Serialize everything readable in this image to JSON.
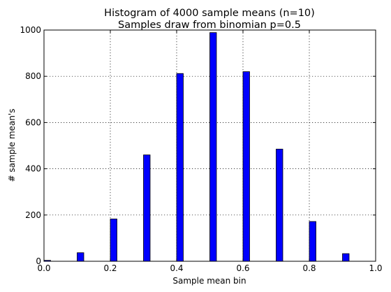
{
  "chart_data": {
    "type": "bar",
    "title": "Histogram of 4000 sample means (n=10)",
    "subtitle": "Samples draw from binomian p=0.5",
    "xlabel": "Sample mean bin",
    "ylabel": "# sample mean's",
    "xlim": [
      0.0,
      1.0
    ],
    "ylim": [
      0,
      1000
    ],
    "x_ticks": [
      "0.0",
      "0.2",
      "0.4",
      "0.6",
      "0.8",
      "1.0"
    ],
    "x_tick_values": [
      0.0,
      0.2,
      0.4,
      0.6,
      0.8,
      1.0
    ],
    "y_ticks": [
      "0",
      "200",
      "400",
      "600",
      "800",
      "1000"
    ],
    "y_tick_values": [
      0,
      200,
      400,
      600,
      800,
      1000
    ],
    "grid": true,
    "bar_color": "#0000ff",
    "bar_width": 0.02,
    "x": [
      0.0,
      0.1,
      0.2,
      0.3,
      0.4,
      0.5,
      0.6,
      0.7,
      0.8,
      0.9,
      1.0
    ],
    "values": [
      4,
      37,
      183,
      460,
      812,
      989,
      820,
      485,
      172,
      33,
      4
    ]
  }
}
